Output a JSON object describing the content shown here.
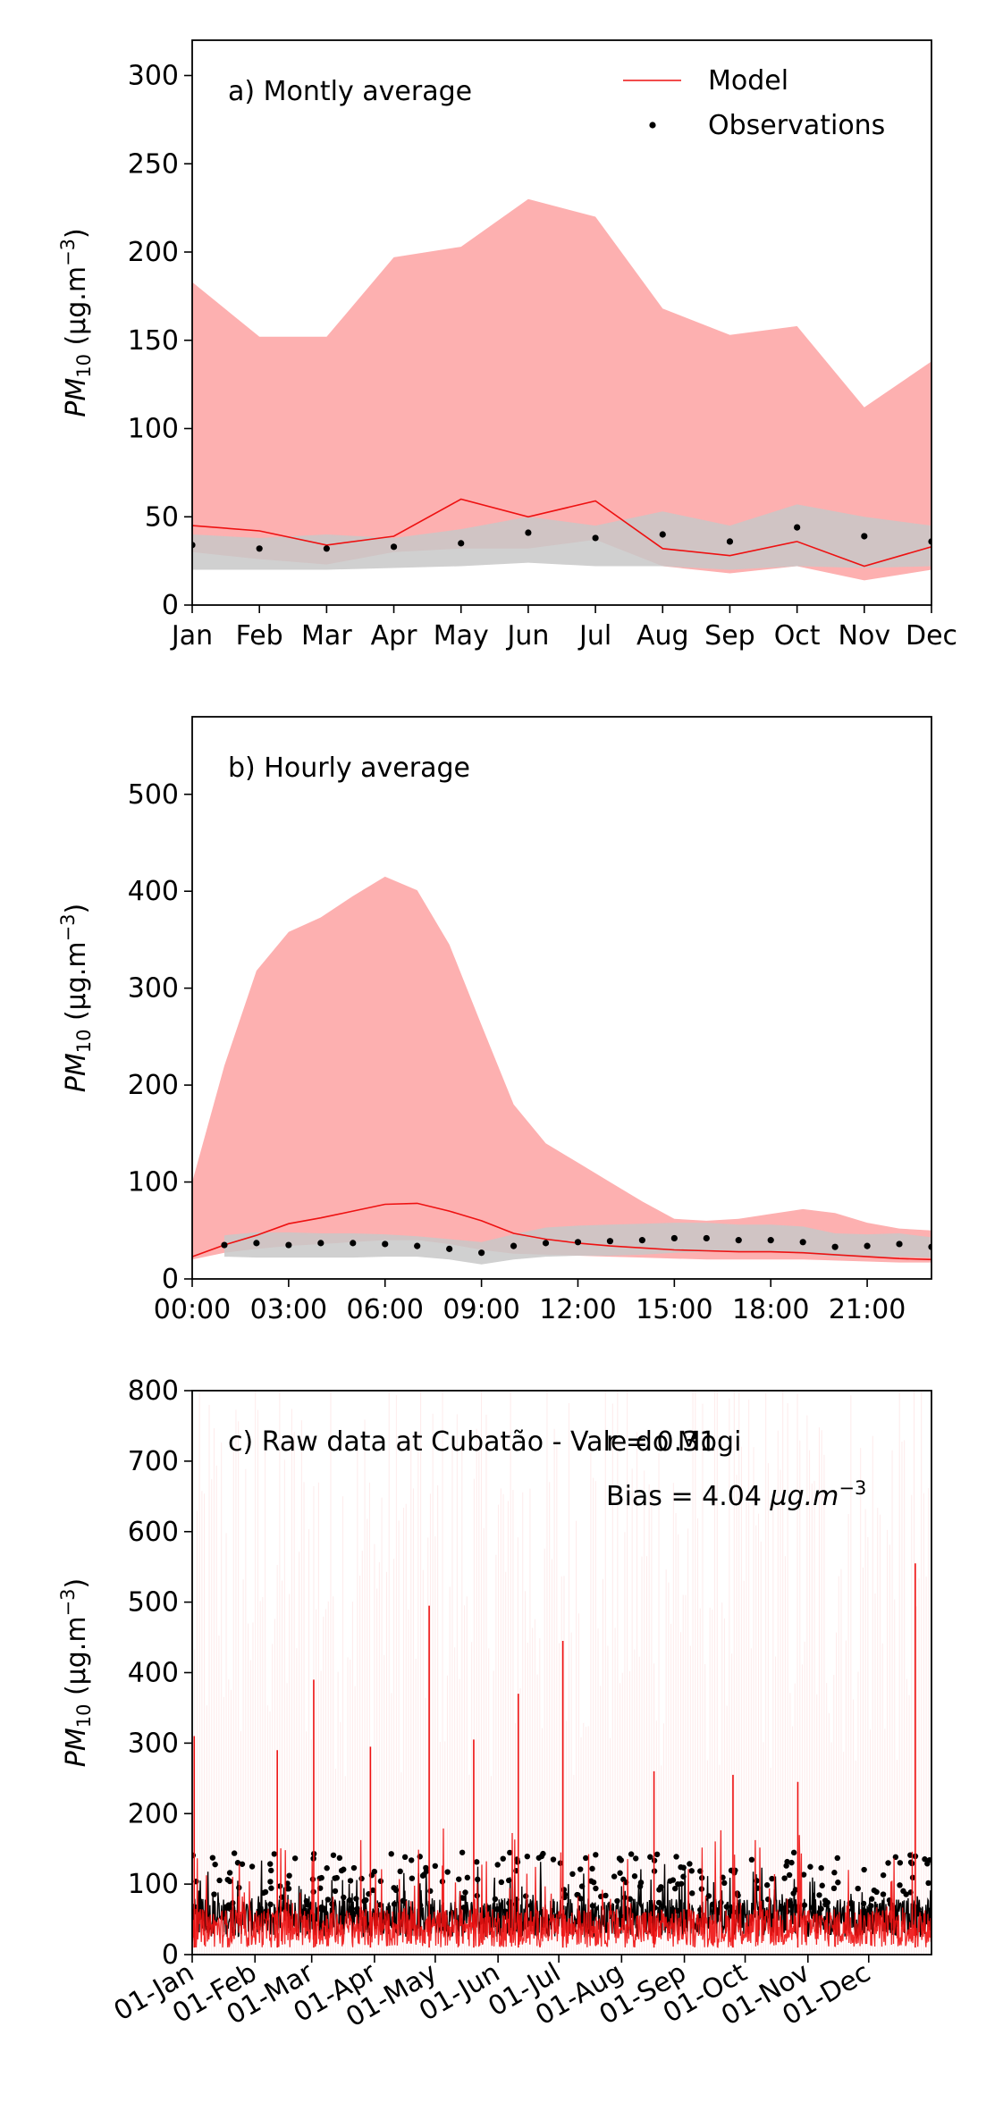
{
  "chart_data": [
    {
      "type": "line",
      "annotation": "a) Montly average",
      "ylabel": "PM10 (µg.m−3)",
      "ylabel_main": "PM",
      "ylabel_sub": "10",
      "ylabel_unit": " (µg.m",
      "ylabel_sup": "−3",
      "ylabel_close": ")",
      "ylim": [
        0,
        320
      ],
      "yticks": [
        0,
        50,
        100,
        150,
        200,
        250,
        300
      ],
      "xlim": [
        0,
        11
      ],
      "categories": [
        "Jan",
        "Feb",
        "Mar",
        "Apr",
        "May",
        "Jun",
        "Jul",
        "Aug",
        "Sep",
        "Oct",
        "Nov",
        "Dec"
      ],
      "xtick_positions": [
        0,
        1,
        2,
        3,
        4,
        5,
        6,
        7,
        8,
        9,
        10,
        11
      ],
      "legend": {
        "position": "top-right",
        "model": "Model",
        "observations": "Observations"
      },
      "colors": {
        "model_line": "#ee1111",
        "model_band": "#fdb0b0",
        "obs_band": "#c8c8c8",
        "obs_points": "#000000"
      },
      "series": [
        {
          "name": "Model",
          "kind": "line",
          "x": [
            0,
            1,
            2,
            3,
            4,
            5,
            6,
            7,
            8,
            9,
            10,
            11
          ],
          "values": [
            45,
            42,
            34,
            39,
            60,
            50,
            59,
            32,
            28,
            36,
            22,
            33
          ]
        },
        {
          "name": "Observations",
          "kind": "points",
          "x": [
            0,
            1,
            2,
            3,
            4,
            5,
            6,
            7,
            8,
            9,
            10,
            11
          ],
          "values": [
            34,
            32,
            32,
            33,
            35,
            41,
            38,
            40,
            36,
            44,
            39,
            36
          ]
        }
      ],
      "bands": [
        {
          "kind": "model",
          "x": [
            0,
            1,
            2,
            3,
            4,
            5,
            6,
            7,
            8,
            9,
            10,
            11
          ],
          "lower": [
            30,
            26,
            23,
            30,
            32,
            32,
            37,
            22,
            18,
            22,
            14,
            20
          ],
          "upper": [
            183,
            152,
            152,
            197,
            203,
            230,
            220,
            168,
            153,
            158,
            112,
            138
          ]
        },
        {
          "kind": "obs",
          "x": [
            0,
            1,
            2,
            3,
            4,
            5,
            6,
            7,
            8,
            9,
            10,
            11
          ],
          "lower": [
            20,
            20,
            20,
            21,
            22,
            24,
            22,
            22,
            20,
            22,
            21,
            22
          ],
          "upper": [
            40,
            38,
            40,
            38,
            43,
            50,
            45,
            53,
            45,
            57,
            50,
            45
          ]
        }
      ]
    },
    {
      "type": "line",
      "annotation": "b) Hourly average",
      "ylabel": "PM10 (µg.m−3)",
      "ylabel_main": "PM",
      "ylabel_sub": "10",
      "ylabel_unit": " (µg.m",
      "ylabel_sup": "−3",
      "ylabel_close": ")",
      "ylim": [
        0,
        580
      ],
      "yticks": [
        0,
        100,
        200,
        300,
        400,
        500
      ],
      "xlim": [
        0,
        23
      ],
      "xtick_labels": [
        "00:00",
        "03:00",
        "06:00",
        "09:00",
        "12:00",
        "15:00",
        "18:00",
        "21:00"
      ],
      "xtick_positions": [
        0,
        3,
        6,
        9,
        12,
        15,
        18,
        21
      ],
      "colors": {
        "model_line": "#ee1111",
        "model_band": "#fdb0b0",
        "obs_band": "#c8c8c8",
        "obs_points": "#000000"
      },
      "series": [
        {
          "name": "Model",
          "kind": "line",
          "x": [
            0,
            1,
            2,
            3,
            4,
            5,
            6,
            7,
            8,
            9,
            10,
            11,
            12,
            13,
            14,
            15,
            16,
            17,
            18,
            19,
            20,
            21,
            22,
            23
          ],
          "values": [
            23,
            35,
            45,
            57,
            63,
            70,
            77,
            78,
            70,
            60,
            47,
            41,
            37,
            34,
            32,
            30,
            29,
            28,
            28,
            27,
            25,
            23,
            21,
            20
          ]
        },
        {
          "name": "Observations",
          "kind": "points",
          "x": [
            1,
            2,
            3,
            4,
            5,
            6,
            7,
            8,
            9,
            10,
            11,
            12,
            13,
            14,
            15,
            16,
            17,
            18,
            19,
            20,
            21,
            22,
            23
          ],
          "values": [
            35,
            37,
            35,
            37,
            37,
            36,
            34,
            31,
            27,
            34,
            37,
            38,
            39,
            40,
            42,
            42,
            40,
            40,
            38,
            33,
            34,
            36,
            33
          ]
        }
      ],
      "bands": [
        {
          "kind": "model",
          "x": [
            0,
            1,
            2,
            3,
            4,
            5,
            6,
            7,
            8,
            9,
            10,
            11,
            12,
            13,
            14,
            15,
            16,
            17,
            18,
            19,
            20,
            21,
            22,
            23
          ],
          "lower": [
            20,
            27,
            31,
            34,
            36,
            38,
            40,
            40,
            36,
            30,
            26,
            25,
            24,
            23,
            22,
            21,
            20,
            20,
            20,
            20,
            19,
            18,
            17,
            17
          ],
          "upper": [
            100,
            220,
            318,
            358,
            373,
            395,
            415,
            401,
            345,
            262,
            180,
            140,
            120,
            100,
            80,
            62,
            60,
            62,
            67,
            72,
            68,
            58,
            52,
            50
          ]
        },
        {
          "kind": "obs",
          "x": [
            1,
            2,
            3,
            4,
            5,
            6,
            7,
            8,
            9,
            10,
            11,
            12,
            13,
            14,
            15,
            16,
            17,
            18,
            19,
            20,
            21,
            22,
            23
          ],
          "lower": [
            23,
            22,
            22,
            22,
            22,
            23,
            23,
            20,
            15,
            20,
            23,
            24,
            24,
            25,
            27,
            28,
            28,
            28,
            26,
            23,
            22,
            23,
            22
          ],
          "upper": [
            45,
            48,
            48,
            47,
            47,
            46,
            44,
            41,
            38,
            46,
            53,
            55,
            56,
            57,
            58,
            58,
            56,
            56,
            54,
            47,
            46,
            47,
            43
          ]
        }
      ]
    },
    {
      "type": "line",
      "annotation": "c) Raw data at Cubatão - Vale do Mogi",
      "stat_r": "r = 0.31",
      "stat_bias_text": "Bias = 4.04 ",
      "stat_bias_unit": "µg.m",
      "stat_bias_sup": "−3",
      "ylabel": "PM10 (µg.m−3)",
      "ylabel_main": "PM",
      "ylabel_sub": "10",
      "ylabel_unit": " (µg.m",
      "ylabel_sup": "−3",
      "ylabel_close": ")",
      "ylim": [
        0,
        800
      ],
      "yticks": [
        0,
        100,
        200,
        300,
        400,
        500,
        600,
        700,
        800
      ],
      "xlim": [
        0,
        365
      ],
      "xtick_labels": [
        "01-Jan",
        "01-Feb",
        "01-Mar",
        "01-Apr",
        "01-May",
        "01-Jun",
        "01-Jul",
        "01-Aug",
        "01-Sep",
        "01-Oct",
        "01-Nov",
        "01-Dec"
      ],
      "xtick_positions": [
        0,
        31,
        59,
        90,
        120,
        151,
        181,
        212,
        243,
        273,
        304,
        334
      ],
      "colors": {
        "model_line": "#ee1111",
        "model_band": "#fdb0b0",
        "obs_band": "#c8c8c8",
        "obs_points": "#000000"
      },
      "series": [
        {
          "name": "Model",
          "kind": "raw_line",
          "note": "hourly values, mostly 0–100 with peaks",
          "peaks_x": [
            1,
            42,
            60,
            88,
            117,
            139,
            161,
            183,
            228,
            267,
            299,
            357
          ],
          "peaks_y": [
            310,
            290,
            390,
            295,
            495,
            305,
            370,
            445,
            260,
            255,
            245,
            555
          ]
        },
        {
          "name": "Observations",
          "kind": "raw_points",
          "note": "hourly observations, mostly 0–140"
        }
      ]
    }
  ]
}
